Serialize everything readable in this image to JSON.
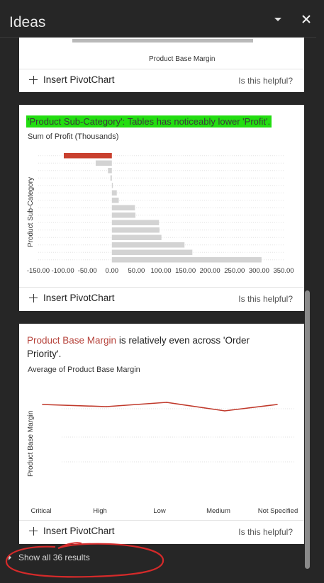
{
  "pane": {
    "title": "Ideas"
  },
  "cards": [
    {
      "x_axis_label": "Product Base Margin",
      "insert_label": "Insert PivotChart",
      "helpful_label": "Is this helpful?"
    },
    {
      "headline": "'Product Sub-Category': Tables has noticeably lower 'Profit'.",
      "subtitle": "Sum of Profit (Thousands)",
      "y_axis_label": "Product Sub-Category",
      "insert_label": "Insert PivotChart",
      "helpful_label": "Is this helpful?"
    },
    {
      "headline_accent": "Product Base Margin",
      "headline_rest": " is relatively even across 'Order Priority'.",
      "subtitle": "Average of Product Base Margin",
      "y_axis_label": "Product Base Margin",
      "insert_label": "Insert PivotChart",
      "helpful_label": "Is this helpful?"
    }
  ],
  "footer": {
    "show_all_label": "Show all 36 results"
  },
  "colors": {
    "highlight_bar": "#c9402f",
    "bar": "#d3d3d3",
    "line": "#c0392b",
    "highlight_text": "#22dd10"
  },
  "chart_data": [
    {
      "type": "bar",
      "orientation": "horizontal",
      "title": "Sum of Profit (Thousands)",
      "ylabel": "Product Sub-Category",
      "xlim": [
        -150,
        350
      ],
      "x_ticks": [
        "-150.00",
        "-100.00",
        "-50.00",
        "0.00",
        "50.00",
        "100.00",
        "150.00",
        "200.00",
        "250.00",
        "300.00",
        "350.00"
      ],
      "values": [
        -98,
        -33,
        -8,
        -3,
        2,
        10,
        14,
        47,
        48,
        96,
        97,
        101,
        148,
        164,
        305
      ],
      "highlight_index": 0
    },
    {
      "type": "line",
      "title": "Average of Product Base Margin",
      "ylabel": "Product Base Margin",
      "categories": [
        "Critical",
        "High",
        "Low",
        "Medium",
        "Not Specified"
      ],
      "values": [
        0.512,
        0.511,
        0.513,
        0.509,
        0.512
      ],
      "ylim": [
        0.47,
        0.52
      ]
    }
  ]
}
